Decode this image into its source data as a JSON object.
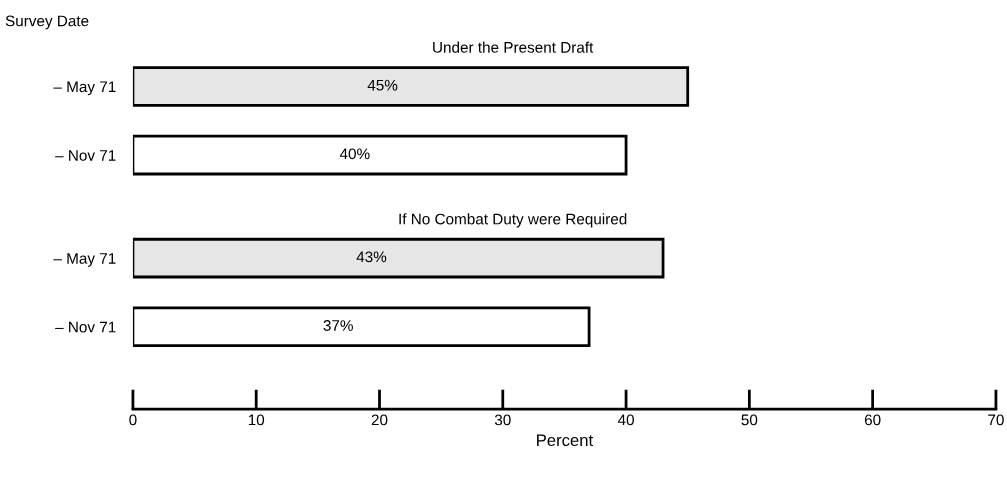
{
  "chart_data": {
    "type": "bar",
    "orientation": "horizontal",
    "ylabel": "Survey Date",
    "xlabel": "Percent",
    "categories": [
      "– May 71",
      "– Nov 71",
      "– May 71",
      "– Nov 71"
    ],
    "values": [
      45,
      40,
      43,
      37
    ],
    "colors": [
      "#e6e6e6",
      "#ffffff",
      "#e6e6e6",
      "#ffffff"
    ],
    "value_labels": [
      "45%",
      "40%",
      "43%",
      "37%"
    ],
    "annotations": [
      "Under the Present Draft",
      "If No Combat Duty were Required"
    ],
    "xlim": [
      0,
      70
    ],
    "xticks": [
      0,
      10,
      20,
      30,
      40,
      50,
      60,
      70
    ],
    "grid": false,
    "legend": false
  }
}
